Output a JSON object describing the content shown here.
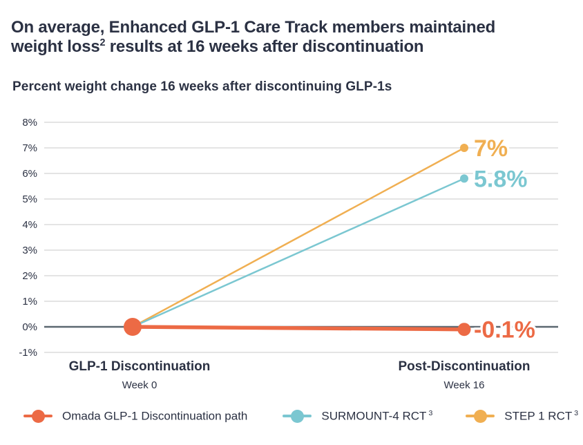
{
  "header": {
    "title_line1": "On average, Enhanced GLP-1 Care Track members maintained",
    "title_line2_pre": "weight loss",
    "title_sup": "2",
    "title_line2_post": " results at 16 weeks after discontinuation"
  },
  "colors": {
    "text_dark": "#2b3143",
    "gridline": "#dcdcdc",
    "zero_axis": "#5b6770",
    "background": "#ffffff",
    "omada_orange": "#ec6a45",
    "surmount_teal": "#7bc7d1",
    "step_gold": "#f0af52"
  },
  "chart_data": {
    "type": "line",
    "title": "Percent weight change 16 weeks after discontinuing GLP-1s",
    "xlabel": "",
    "ylabel": "Percent weight change",
    "ylim": [
      -1,
      8
    ],
    "grid": true,
    "legend_position": "bottom",
    "x": [
      0,
      16
    ],
    "x_ticks": [
      {
        "label": "GLP-1 Discontinuation",
        "sublabel": "Week 0"
      },
      {
        "label": "Post-Discontinuation",
        "sublabel": "Week 16"
      }
    ],
    "y_ticks": [
      {
        "value": 8,
        "label": "8%"
      },
      {
        "value": 7,
        "label": "7%"
      },
      {
        "value": 6,
        "label": "6%"
      },
      {
        "value": 5,
        "label": "5%"
      },
      {
        "value": 4,
        "label": "4%"
      },
      {
        "value": 3,
        "label": "3%"
      },
      {
        "value": 2,
        "label": "2%"
      },
      {
        "value": 1,
        "label": "1%"
      },
      {
        "value": 0,
        "label": "0%"
      },
      {
        "value": -1,
        "label": "-1%"
      }
    ],
    "series": [
      {
        "name": "Omada GLP-1 Discontinuation path",
        "values": [
          0,
          -0.1
        ],
        "color": "#ec6a45",
        "end_label": "-0.1%",
        "emphasized": true
      },
      {
        "name": "SURMOUNT-4 RCT",
        "values": [
          0,
          5.8
        ],
        "color": "#7bc7d1",
        "end_label": "5.8%",
        "emphasized": false
      },
      {
        "name": "STEP 1 RCT",
        "values": [
          0,
          7
        ],
        "color": "#f0af52",
        "end_label": "7%",
        "emphasized": false
      }
    ]
  },
  "legend": {
    "items": [
      {
        "label": "Omada GLP-1 Discontinuation path",
        "sup": ""
      },
      {
        "label": "SURMOUNT-4 RCT",
        "sup": "3"
      },
      {
        "label": "STEP 1 RCT",
        "sup": "3"
      }
    ]
  }
}
